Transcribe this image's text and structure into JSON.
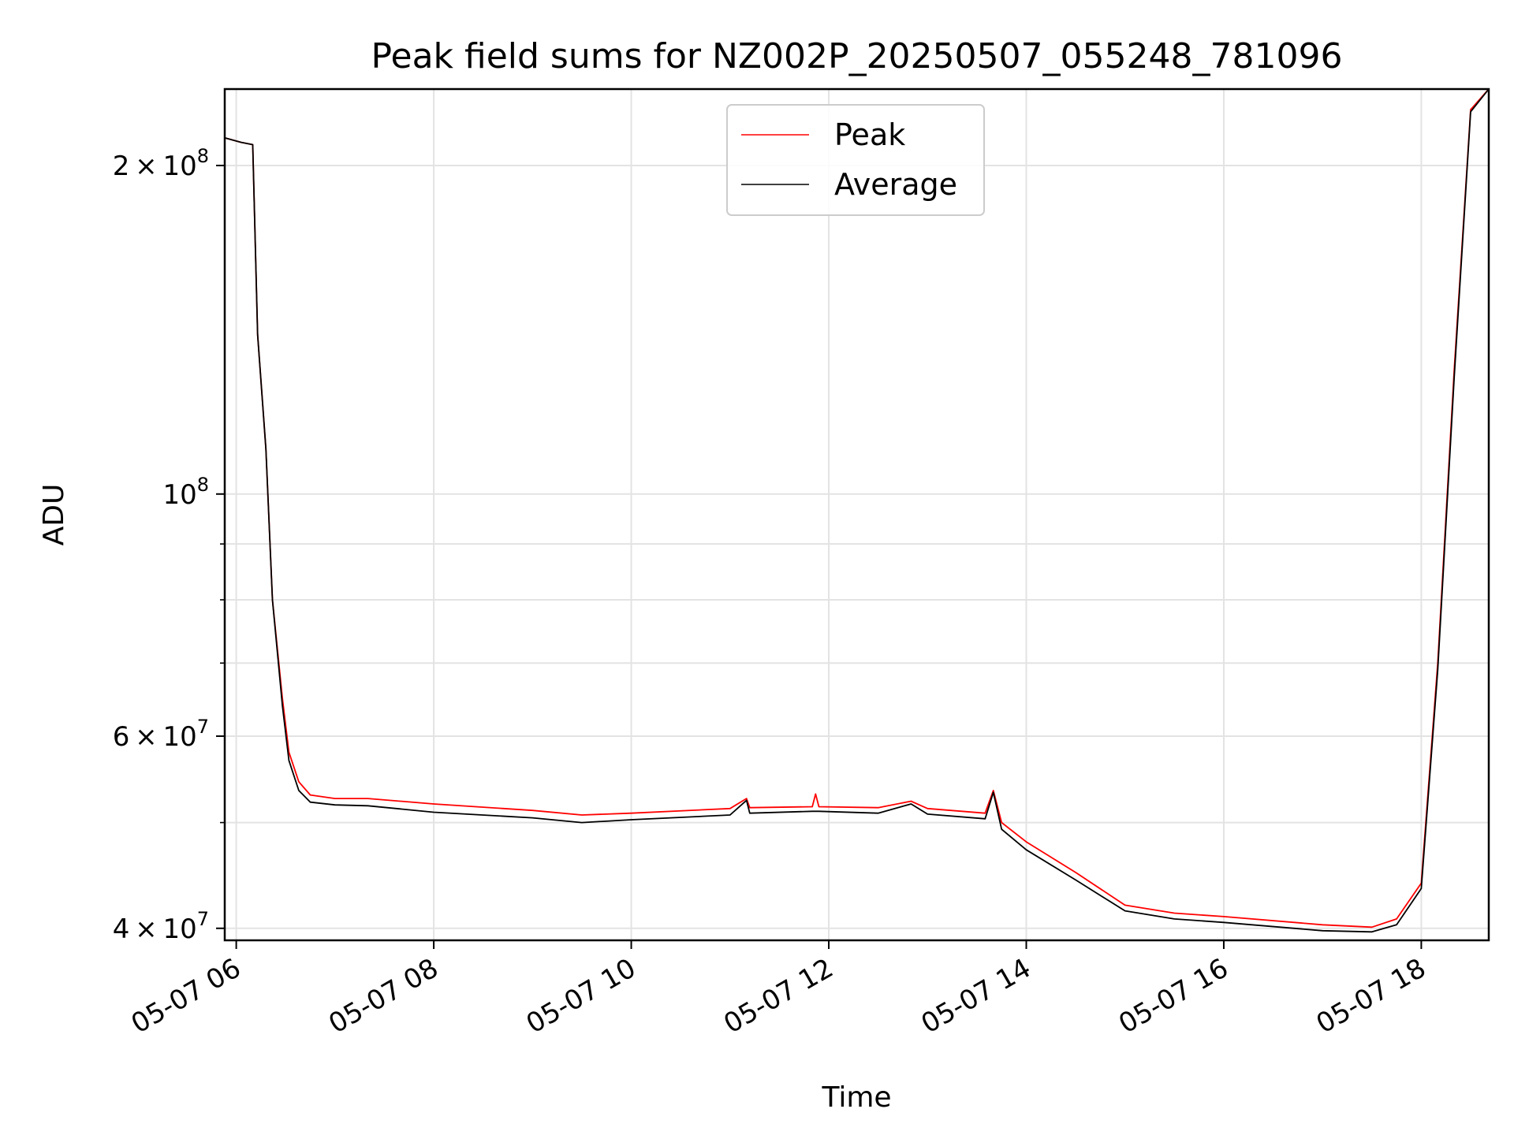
{
  "chart_data": {
    "type": "line",
    "title": "Peak field sums for NZ002P_20250507_055248_781096",
    "xlabel": "Time",
    "ylabel": "ADU",
    "y_scale": "log",
    "ylim": [
      39000000,
      235000000
    ],
    "xlim": [
      "2025-05-07 05:53",
      "2025-05-07 18:41"
    ],
    "grid": true,
    "legend_position": "top-center",
    "x_ticks": [
      "2025-05-07 06:00",
      "2025-05-07 08:00",
      "2025-05-07 10:00",
      "2025-05-07 12:00",
      "2025-05-07 14:00",
      "2025-05-07 16:00",
      "2025-05-07 18:00"
    ],
    "x_tick_labels": [
      "05-07 06",
      "05-07 08",
      "05-07 10",
      "05-07 12",
      "05-07 14",
      "05-07 16",
      "05-07 18"
    ],
    "y_major_ticks": [
      {
        "value": 40000000,
        "mantissa": "4",
        "exponent": "7"
      },
      {
        "value": 60000000,
        "mantissa": "6",
        "exponent": "7"
      },
      {
        "value": 100000000,
        "mantissa": "",
        "exponent": "8"
      },
      {
        "value": 200000000,
        "mantissa": "2",
        "exponent": "8"
      }
    ],
    "y_minor_ticks": [
      50000000,
      70000000,
      80000000,
      90000000
    ],
    "series": [
      {
        "name": "Peak",
        "color": "#ff0000",
        "points": [
          [
            "2025-05-07 05:53",
            212000000
          ],
          [
            "2025-05-07 06:03",
            210000000
          ],
          [
            "2025-05-07 06:10",
            209000000
          ],
          [
            "2025-05-07 06:13",
            140000000
          ],
          [
            "2025-05-07 06:18",
            110000000
          ],
          [
            "2025-05-07 06:22",
            80000000
          ],
          [
            "2025-05-07 06:28",
            65000000
          ],
          [
            "2025-05-07 06:32",
            58000000
          ],
          [
            "2025-05-07 06:38",
            54500000
          ],
          [
            "2025-05-07 06:45",
            53000000
          ],
          [
            "2025-05-07 07:00",
            52600000
          ],
          [
            "2025-05-07 07:20",
            52600000
          ],
          [
            "2025-05-07 08:00",
            52000000
          ],
          [
            "2025-05-07 09:00",
            51300000
          ],
          [
            "2025-05-07 09:30",
            50800000
          ],
          [
            "2025-05-07 10:00",
            51000000
          ],
          [
            "2025-05-07 11:00",
            51500000
          ],
          [
            "2025-05-07 11:10",
            52600000
          ],
          [
            "2025-05-07 11:12",
            51600000
          ],
          [
            "2025-05-07 11:50",
            51700000
          ],
          [
            "2025-05-07 11:52",
            53100000
          ],
          [
            "2025-05-07 11:54",
            51700000
          ],
          [
            "2025-05-07 12:30",
            51600000
          ],
          [
            "2025-05-07 12:50",
            52300000
          ],
          [
            "2025-05-07 13:00",
            51500000
          ],
          [
            "2025-05-07 13:35",
            51000000
          ],
          [
            "2025-05-07 13:40",
            53500000
          ],
          [
            "2025-05-07 13:45",
            50000000
          ],
          [
            "2025-05-07 14:00",
            48000000
          ],
          [
            "2025-05-07 14:30",
            45000000
          ],
          [
            "2025-05-07 15:00",
            42000000
          ],
          [
            "2025-05-07 15:30",
            41300000
          ],
          [
            "2025-05-07 16:00",
            41000000
          ],
          [
            "2025-05-07 17:00",
            40300000
          ],
          [
            "2025-05-07 17:30",
            40100000
          ],
          [
            "2025-05-07 17:45",
            40800000
          ],
          [
            "2025-05-07 18:00",
            44000000
          ],
          [
            "2025-05-07 18:10",
            70000000
          ],
          [
            "2025-05-07 18:20",
            130000000
          ],
          [
            "2025-05-07 18:30",
            225000000
          ],
          [
            "2025-05-07 18:41",
            235000000
          ]
        ]
      },
      {
        "name": "Average",
        "color": "#000000",
        "points": [
          [
            "2025-05-07 05:53",
            212000000
          ],
          [
            "2025-05-07 06:03",
            210000000
          ],
          [
            "2025-05-07 06:10",
            209000000
          ],
          [
            "2025-05-07 06:13",
            140000000
          ],
          [
            "2025-05-07 06:18",
            110000000
          ],
          [
            "2025-05-07 06:22",
            80000000
          ],
          [
            "2025-05-07 06:28",
            64000000
          ],
          [
            "2025-05-07 06:32",
            57000000
          ],
          [
            "2025-05-07 06:38",
            53500000
          ],
          [
            "2025-05-07 06:45",
            52200000
          ],
          [
            "2025-05-07 07:00",
            51900000
          ],
          [
            "2025-05-07 07:20",
            51800000
          ],
          [
            "2025-05-07 08:00",
            51100000
          ],
          [
            "2025-05-07 09:00",
            50500000
          ],
          [
            "2025-05-07 09:30",
            50000000
          ],
          [
            "2025-05-07 10:00",
            50300000
          ],
          [
            "2025-05-07 11:00",
            50800000
          ],
          [
            "2025-05-07 11:10",
            52400000
          ],
          [
            "2025-05-07 11:12",
            51000000
          ],
          [
            "2025-05-07 11:50",
            51200000
          ],
          [
            "2025-05-07 11:52",
            51200000
          ],
          [
            "2025-05-07 11:54",
            51200000
          ],
          [
            "2025-05-07 12:30",
            51000000
          ],
          [
            "2025-05-07 12:50",
            52000000
          ],
          [
            "2025-05-07 13:00",
            50900000
          ],
          [
            "2025-05-07 13:35",
            50400000
          ],
          [
            "2025-05-07 13:40",
            53300000
          ],
          [
            "2025-05-07 13:45",
            49300000
          ],
          [
            "2025-05-07 14:00",
            47200000
          ],
          [
            "2025-05-07 14:30",
            44300000
          ],
          [
            "2025-05-07 15:00",
            41500000
          ],
          [
            "2025-05-07 15:30",
            40800000
          ],
          [
            "2025-05-07 16:00",
            40500000
          ],
          [
            "2025-05-07 17:00",
            39800000
          ],
          [
            "2025-05-07 17:30",
            39700000
          ],
          [
            "2025-05-07 17:45",
            40300000
          ],
          [
            "2025-05-07 18:00",
            43500000
          ],
          [
            "2025-05-07 18:10",
            69000000
          ],
          [
            "2025-05-07 18:20",
            128000000
          ],
          [
            "2025-05-07 18:30",
            224000000
          ],
          [
            "2025-05-07 18:41",
            235000000
          ]
        ]
      }
    ]
  }
}
